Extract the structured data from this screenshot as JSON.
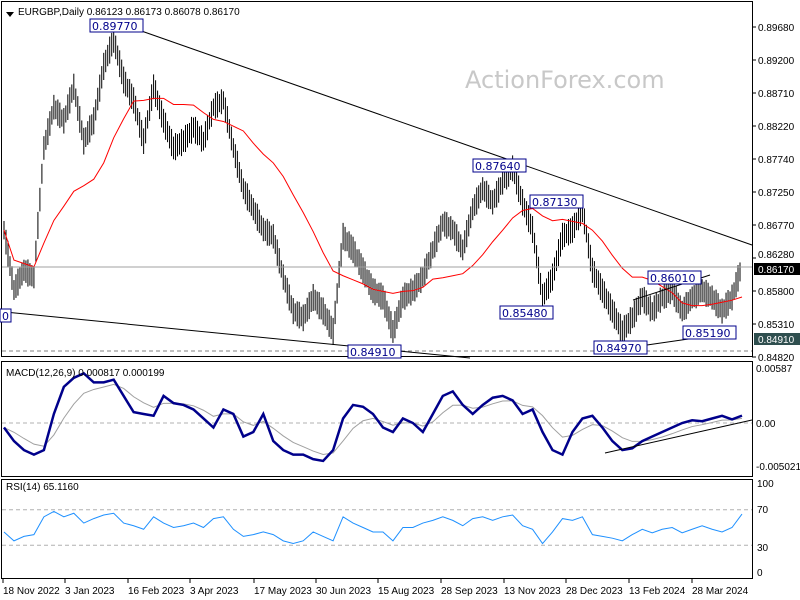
{
  "header": {
    "symbol_line": "EURGBP,Daily  0.86123 0.86173 0.86078 0.86170",
    "watermark": "ActionForex.com"
  },
  "chart_data": [
    {
      "type": "line",
      "title": "EURGBP,Daily  0.86123 0.86173 0.86078 0.86170",
      "x_ticks": [
        "18 Nov 2022",
        "3 Jan 2023",
        "16 Feb 2023",
        "3 Apr 2023",
        "17 May 2023",
        "30 Jun 2023",
        "15 Aug 2023",
        "28 Sep 2023",
        "13 Nov 2023",
        "28 Dec 2023",
        "13 Feb 2024",
        "28 Mar 2024"
      ],
      "y_ticks": [
        "0.89680",
        "0.89200",
        "0.88710",
        "0.88220",
        "0.87740",
        "0.87250",
        "0.86770",
        "0.86280",
        "0.85800",
        "0.85310",
        "0.84820"
      ],
      "ylim": [
        0.8482,
        0.8968
      ],
      "current_price": "0.86170",
      "reference_level": "0.84910",
      "price_weekly_close": [
        0.8669,
        0.8581,
        0.861,
        0.86,
        0.879,
        0.885,
        0.883,
        0.888,
        0.88,
        0.883,
        0.891,
        0.895,
        0.889,
        0.886,
        0.88,
        0.888,
        0.883,
        0.879,
        0.88,
        0.882,
        0.88,
        0.885,
        0.886,
        0.879,
        0.873,
        0.87,
        0.867,
        0.866,
        0.86,
        0.855,
        0.854,
        0.857,
        0.855,
        0.852,
        0.866,
        0.864,
        0.861,
        0.858,
        0.857,
        0.852,
        0.857,
        0.858,
        0.86,
        0.864,
        0.868,
        0.867,
        0.864,
        0.87,
        0.873,
        0.871,
        0.874,
        0.876,
        0.871,
        0.867,
        0.857,
        0.86,
        0.866,
        0.867,
        0.87,
        0.861,
        0.858,
        0.855,
        0.852,
        0.854,
        0.857,
        0.855,
        0.857,
        0.858,
        0.855,
        0.857,
        0.858,
        0.857,
        0.855,
        0.857,
        0.8617
      ],
      "annotations": [
        "0.89770",
        "0.87640",
        "0.87130",
        "0.86010",
        "0.85480",
        "0.85190",
        "0.84970",
        "0.84910",
        "0"
      ],
      "colors": {
        "price": "#000000",
        "moving_average": "#ff0000",
        "label_border": "#00008b"
      }
    },
    {
      "type": "line",
      "title": "MACD(12,26,9) 0.000817 0.000199",
      "y_ticks": [
        "0.00587",
        "0.00",
        "-0.005021"
      ],
      "ylim": [
        -0.005021,
        0.00587
      ],
      "macd": [
        -0.0005,
        -0.002,
        -0.003,
        -0.0035,
        -0.003,
        0.001,
        0.004,
        0.005,
        0.0055,
        0.0045,
        0.0045,
        0.0048,
        0.003,
        0.0012,
        0.001,
        0.0008,
        0.003,
        0.0022,
        0.002,
        0.0015,
        0.0005,
        -0.0005,
        0.0015,
        0.001,
        -0.0015,
        -0.001,
        0.001,
        -0.002,
        -0.003,
        -0.0035,
        -0.0035,
        -0.004,
        -0.0042,
        -0.003,
        0.0005,
        0.002,
        0.0018,
        0.001,
        -0.0005,
        -0.001,
        0.0005,
        0.0,
        -0.001,
        0.001,
        0.003,
        0.0035,
        0.002,
        0.001,
        0.002,
        0.0028,
        0.003,
        0.0025,
        0.001,
        0.0015,
        -0.001,
        -0.003,
        -0.0035,
        -0.001,
        0.0005,
        0.0008,
        -0.0005,
        -0.002,
        -0.003,
        -0.0028,
        -0.002,
        -0.0015,
        -0.001,
        -0.0005,
        0.0,
        0.0003,
        0.0002,
        0.0005,
        0.0008,
        0.0004,
        0.000817
      ],
      "colors": {
        "macd": "#00008b",
        "signal": "#a0a0a0"
      }
    },
    {
      "type": "line",
      "title": "RSI(14) 65.1160",
      "y_ticks": [
        "100",
        "70",
        "30",
        "0"
      ],
      "ylim": [
        0,
        100
      ],
      "levels": [
        70,
        30
      ],
      "rsi": [
        45,
        35,
        40,
        42,
        62,
        68,
        62,
        66,
        55,
        60,
        64,
        66,
        55,
        52,
        48,
        62,
        55,
        50,
        52,
        55,
        50,
        60,
        62,
        48,
        40,
        42,
        45,
        42,
        35,
        32,
        35,
        45,
        40,
        35,
        62,
        55,
        50,
        45,
        45,
        35,
        50,
        50,
        55,
        58,
        62,
        58,
        52,
        60,
        62,
        58,
        62,
        64,
        52,
        48,
        32,
        45,
        60,
        58,
        62,
        42,
        40,
        38,
        35,
        42,
        48,
        44,
        48,
        50,
        44,
        48,
        52,
        48,
        45,
        50,
        65.116
      ],
      "colors": {
        "rsi": "#1e90ff"
      }
    }
  ]
}
